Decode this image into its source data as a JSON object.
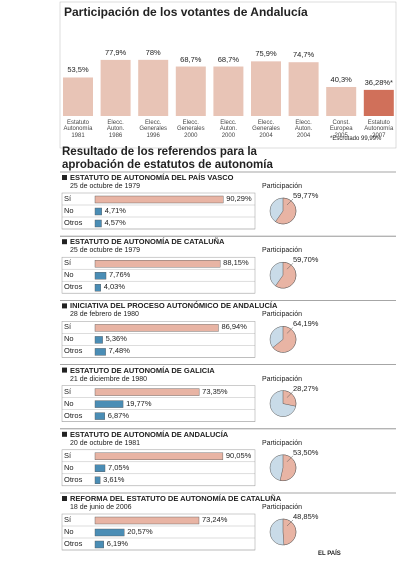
{
  "section_title": "Resultado de los referendos para la aprobación de estatutos de autonomía",
  "source": "EL PAÍS",
  "chart_data": [
    {
      "type": "bar",
      "title": "Participación de los votantes de Andalucía",
      "categories": [
        "Estatuto\nAutonomía\n1981",
        "Elecc.\nAuton.\n1986",
        "Elecc.\nGenerales\n1996",
        "Elecc.\nGenerales\n2000",
        "Elecc.\nAuton.\n2000",
        "Elecc.\nGenerales\n2004",
        "Elecc.\nAuton.\n2004",
        "Const.\nEuropea\n2005",
        "Estatuto\nAutonomía\n2007"
      ],
      "values": [
        53.5,
        77.9,
        78,
        68.7,
        68.7,
        75.9,
        74.7,
        40.3,
        36.28
      ],
      "value_labels": [
        "53,5%",
        "77,9%",
        "78%",
        "68,7%",
        "68,7%",
        "75,9%",
        "74,7%",
        "40,3%",
        "36,28%*"
      ],
      "colors": [
        "#e8c4b6",
        "#e8c4b6",
        "#e8c4b6",
        "#e8c4b6",
        "#e8c4b6",
        "#e8c4b6",
        "#e8c4b6",
        "#e8c4b6",
        "#d0705a"
      ],
      "note": "*Escrutado 99,99%"
    },
    {
      "type": "referendum",
      "title": "ESTATUTO DE AUTONOMÍA DEL PAÍS VASCO",
      "subtitle": "25 de octubre de 1979",
      "categories": [
        "Sí",
        "No",
        "Otros"
      ],
      "values": [
        90.29,
        4.71,
        4.57
      ],
      "value_labels": [
        "90,29%",
        "4,71%",
        "4,57%"
      ],
      "colors": [
        "#e8b4a4",
        "#4a8db5",
        "#4a8db5"
      ],
      "pie": {
        "title": "Participación",
        "value": 59.77,
        "value_label": "59,77%"
      }
    },
    {
      "type": "referendum",
      "title": "ESTATUTO DE AUTONOMÍA DE CATALUÑA",
      "subtitle": "25 de octubre de 1979",
      "categories": [
        "Sí",
        "No",
        "Otros"
      ],
      "values": [
        88.15,
        7.76,
        4.03
      ],
      "value_labels": [
        "88,15%",
        "7,76%",
        "4,03%"
      ],
      "colors": [
        "#e8b4a4",
        "#4a8db5",
        "#4a8db5"
      ],
      "pie": {
        "title": "Participación",
        "value": 59.7,
        "value_label": "59,70%"
      }
    },
    {
      "type": "referendum",
      "title": "INICIATIVA DEL PROCESO AUTONÓMICO DE ANDALUCÍA",
      "subtitle": "28 de febrero de 1980",
      "categories": [
        "Sí",
        "No",
        "Otros"
      ],
      "values": [
        86.94,
        5.36,
        7.48
      ],
      "value_labels": [
        "86,94%",
        "5,36%",
        "7,48%"
      ],
      "colors": [
        "#e8b4a4",
        "#4a8db5",
        "#4a8db5"
      ],
      "pie": {
        "title": "Participación",
        "value": 64.19,
        "value_label": "64,19%"
      }
    },
    {
      "type": "referendum",
      "title": "ESTATUTO DE AUTONOMÍA DE GALICIA",
      "subtitle": "21 de diciembre de 1980",
      "categories": [
        "Sí",
        "No",
        "Otros"
      ],
      "values": [
        73.35,
        19.77,
        6.87
      ],
      "value_labels": [
        "73,35%",
        "19,77%",
        "6,87%"
      ],
      "colors": [
        "#e8b4a4",
        "#4a8db5",
        "#4a8db5"
      ],
      "pie": {
        "title": "Participación",
        "value": 28.27,
        "value_label": "28,27%"
      }
    },
    {
      "type": "referendum",
      "title": "ESTATUTO DE AUTONOMÍA DE ANDALUCÍA",
      "subtitle": "20 de octubre de 1981",
      "categories": [
        "Sí",
        "No",
        "Otros"
      ],
      "values": [
        90.05,
        7.05,
        3.61
      ],
      "value_labels": [
        "90,05%",
        "7,05%",
        "3,61%"
      ],
      "colors": [
        "#e8b4a4",
        "#4a8db5",
        "#4a8db5"
      ],
      "pie": {
        "title": "Participación",
        "value": 53.5,
        "value_label": "53,50%"
      }
    },
    {
      "type": "referendum",
      "title": "REFORMA DEL ESTATUTO DE AUTONOMÍA DE CATALUÑA",
      "subtitle": "18 de junio de 2006",
      "categories": [
        "Sí",
        "No",
        "Otros"
      ],
      "values": [
        73.24,
        20.57,
        6.19
      ],
      "value_labels": [
        "73,24%",
        "20,57%",
        "6,19%"
      ],
      "colors": [
        "#e8b4a4",
        "#4a8db5",
        "#4a8db5"
      ],
      "pie": {
        "title": "Participación",
        "value": 48.85,
        "value_label": "48,85%"
      }
    }
  ]
}
